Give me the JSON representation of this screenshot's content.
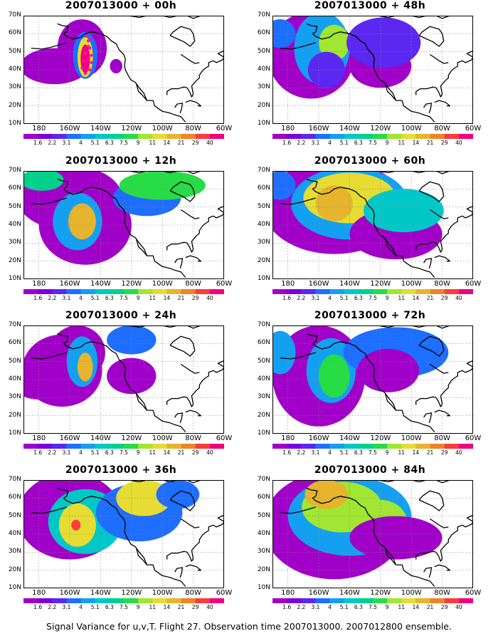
{
  "panels": [
    {
      "title": "2007013000 + 00h",
      "level": 0
    },
    {
      "title": "2007013000 + 48h",
      "level": 4
    },
    {
      "title": "2007013000 + 12h",
      "level": 1
    },
    {
      "title": "2007013000 + 60h",
      "level": 5
    },
    {
      "title": "2007013000 + 24h",
      "level": 2
    },
    {
      "title": "2007013000 + 72h",
      "level": 6
    },
    {
      "title": "2007013000 + 36h",
      "level": 3
    },
    {
      "title": "2007013000 + 84h",
      "level": 7
    }
  ],
  "lat_labels": [
    "70N",
    "60N",
    "50N",
    "40N",
    "30N",
    "20N",
    "10N"
  ],
  "lon_labels": [
    "180",
    "160W",
    "140W",
    "120W",
    "100W",
    "80W",
    "60W"
  ],
  "colorbar": {
    "labels": [
      "1.6",
      "2.2",
      "3.1",
      "4",
      "5.1",
      "6.3",
      "7.5",
      "9",
      "11",
      "14",
      "21",
      "29",
      "40"
    ],
    "colors": [
      "#a000c8",
      "#7d00dc",
      "#5a28f0",
      "#1e6eff",
      "#14a0f0",
      "#00c8c8",
      "#00d28c",
      "#28dc46",
      "#a0e632",
      "#e6dc32",
      "#e6b42d",
      "#f08228",
      "#fa3c3c",
      "#f00082"
    ]
  },
  "footer": "Signal Variance for u,v,T. Flight 27. Observation time 2007013000. 2007012800 ensemble."
}
